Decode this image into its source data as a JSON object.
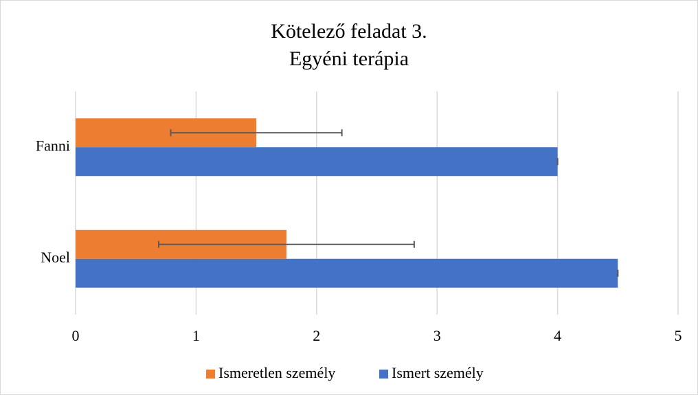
{
  "chart_data": {
    "type": "hbar",
    "title": "Kötelező feladat 3.",
    "subtitle": "Egyéni terápia",
    "categories": [
      "Fanni",
      "Noel"
    ],
    "series": [
      {
        "name": "Ismeretlen személy",
        "color": "#ed7d31",
        "values": [
          1.5,
          1.75
        ],
        "errors": [
          0.71,
          1.06
        ]
      },
      {
        "name": "Ismert személy",
        "color": "#4472c4",
        "values": [
          4,
          4.5
        ],
        "errors": [
          0,
          0
        ]
      }
    ],
    "xlim": [
      0,
      5
    ],
    "xticks": [
      0,
      1,
      2,
      3,
      4,
      5
    ],
    "grid": true,
    "legend": "bottom"
  }
}
